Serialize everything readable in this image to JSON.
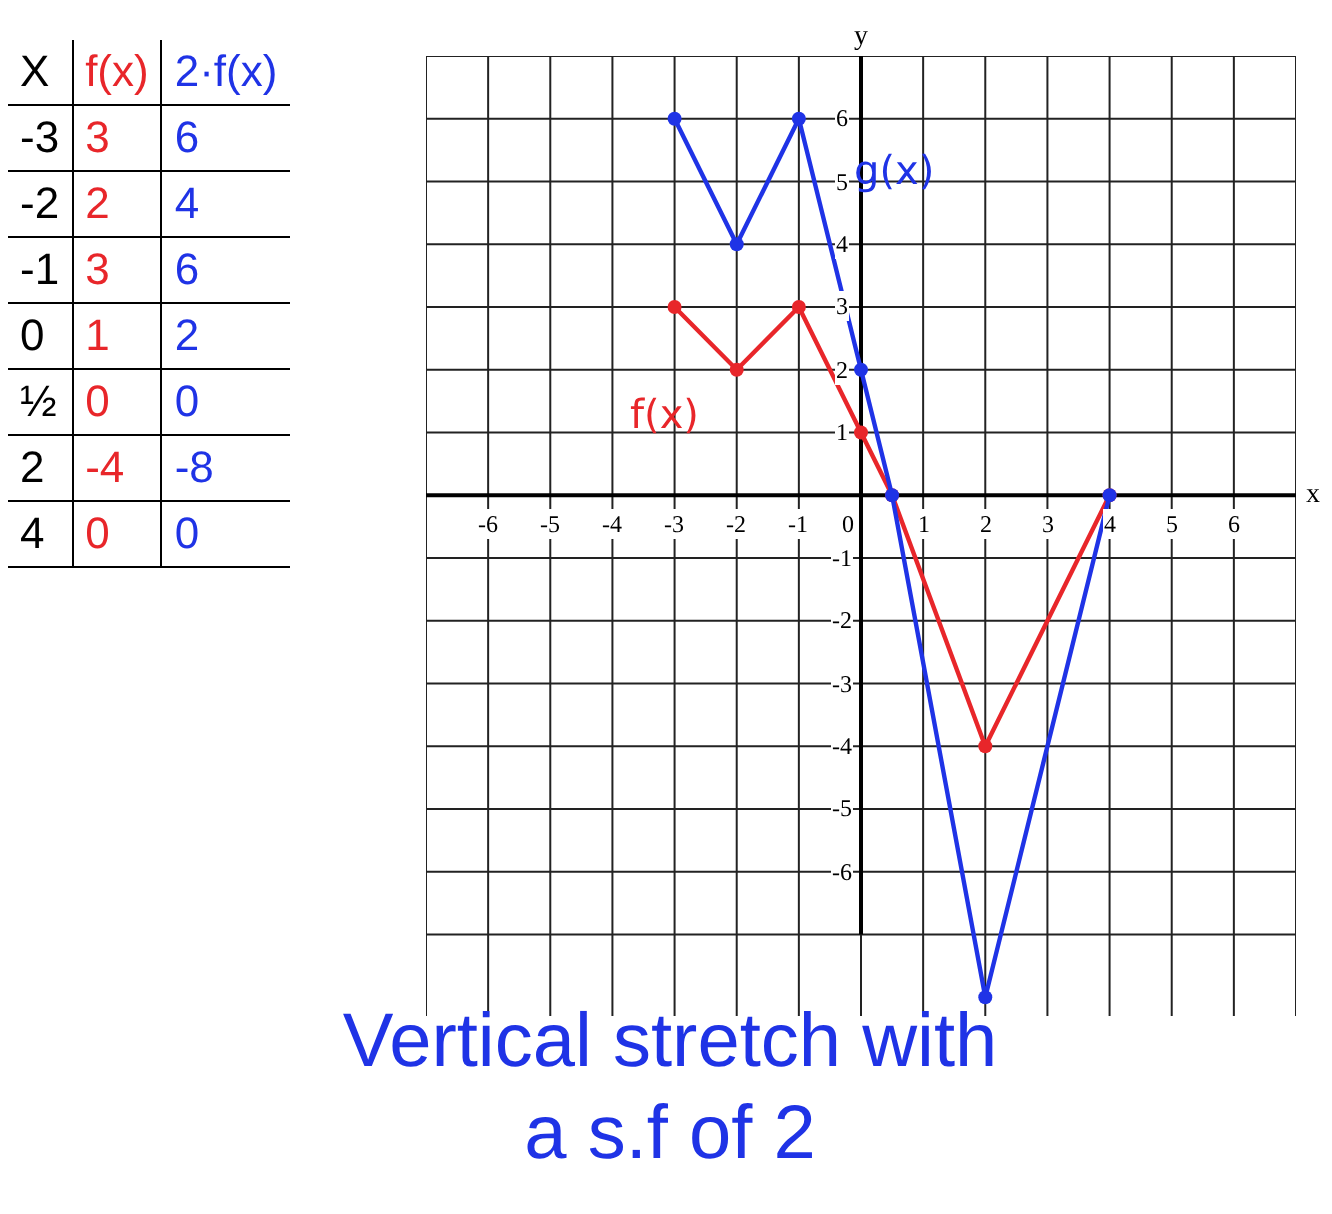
{
  "chart_data": [
    {
      "type": "other",
      "colors": [
        "#000000",
        "#e8262a",
        "#1f33e6"
      ],
      "annotations": [
        "X",
        "f(x)",
        "2·f(x)",
        "-3",
        "3",
        "6",
        "-2",
        "2",
        "4",
        "-1",
        "3",
        "6",
        "0",
        "1",
        "2",
        "½",
        "0",
        "0",
        "2",
        "-4",
        "-8",
        "4",
        "0",
        "0"
      ]
    },
    {
      "type": "line",
      "x": [
        -3,
        -2,
        -1,
        0,
        0.5,
        2,
        4
      ],
      "series": [
        {
          "name": "f(x)",
          "color": "#e8262a",
          "values": [
            3,
            2,
            3,
            1,
            0,
            -4,
            0
          ]
        },
        {
          "name": "g(x)",
          "color": "#1f33e6",
          "values": [
            6,
            4,
            6,
            2,
            0,
            -8,
            0
          ]
        }
      ],
      "xlabel": "x",
      "ylabel": "y",
      "xlim": [
        -7,
        7
      ],
      "ylim": [
        -8.3,
        7
      ],
      "xticks": [
        {
          "value": -7,
          "label": null
        },
        -6,
        -5,
        -4,
        -3,
        -2,
        -1,
        0,
        1,
        2,
        3,
        4,
        5,
        6,
        {
          "value": 7,
          "label": null
        }
      ],
      "yticks": [
        {
          "value": -7,
          "label": null
        },
        -6,
        -5,
        -4,
        -3,
        -2,
        -1,
        1,
        2,
        3,
        4,
        5,
        6,
        {
          "value": 7,
          "label": null
        }
      ],
      "annotations": [
        "Vertical stretch with a s.f of 2"
      ],
      "grid": true,
      "legend": false,
      "marker": "circle"
    }
  ]
}
